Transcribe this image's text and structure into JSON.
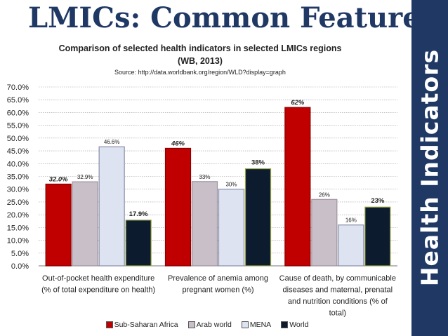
{
  "slide": {
    "title": "LMICs: Common Features",
    "side_label": "Health Indicators"
  },
  "colors": {
    "title": "#1f3864",
    "band": "#1f3864",
    "series": [
      "#c00000",
      "#c8bfc8",
      "#dde3f0",
      "#0d1b2e"
    ]
  },
  "chart_data": {
    "type": "bar",
    "title": "Comparison of selected health indicators in selected LMICs regions (WB, 2013)",
    "title_line1": "Comparison of selected health indicators in selected LMICs regions",
    "title_line2": "(WB, 2013)",
    "source": "Source: http://data.worldbank.org/region/WLD?display=graph",
    "categories": [
      [
        "Out-of-pocket health expenditure",
        "(% of total expenditure on health)"
      ],
      [
        "Prevalence of anemia among",
        "pregnant women (%)"
      ],
      [
        "Cause of death, by communicable",
        "diseases and maternal, prenatal",
        "and nutrition conditions (% of",
        "total)"
      ]
    ],
    "series": [
      {
        "name": "Sub-Saharan Africa",
        "values": [
          32.0,
          46,
          62
        ],
        "labels": [
          "32.0%",
          "46%",
          "62%"
        ]
      },
      {
        "name": "Arab world",
        "values": [
          32.9,
          33,
          26
        ],
        "labels": [
          "32.9%",
          "33%",
          "26%"
        ]
      },
      {
        "name": "MENA",
        "values": [
          46.6,
          30,
          16
        ],
        "labels": [
          "46.6%",
          "30%",
          "16%"
        ]
      },
      {
        "name": "World",
        "values": [
          17.9,
          38,
          23
        ],
        "labels": [
          "17.9%",
          "38%",
          "23%"
        ]
      }
    ],
    "ylim": [
      0,
      70
    ],
    "yticks": [
      "0.0%",
      "5.0%",
      "10.0%",
      "15.0%",
      "20.0%",
      "25.0%",
      "30.0%",
      "35.0%",
      "40.0%",
      "45.0%",
      "50.0%",
      "55.0%",
      "60.0%",
      "65.0%",
      "70.0%"
    ],
    "grid": true,
    "legend": "bottom"
  }
}
